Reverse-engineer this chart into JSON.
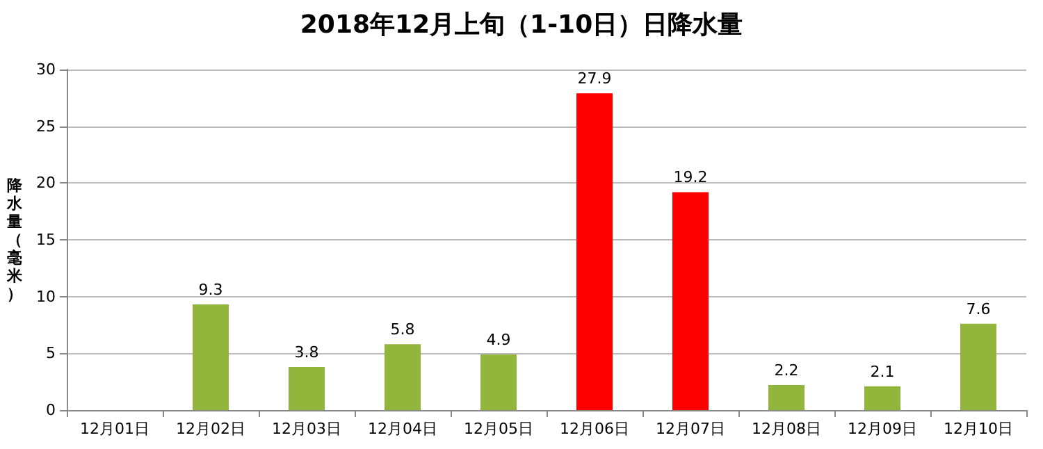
{
  "chart_data": {
    "type": "bar",
    "title": "2018年12月上旬（1-10日）日降水量",
    "ylabel": "降水量（毫米）",
    "categories": [
      "12月01日",
      "12月02日",
      "12月03日",
      "12月04日",
      "12月05日",
      "12月06日",
      "12月07日",
      "12月08日",
      "12月09日",
      "12月10日"
    ],
    "values": [
      0,
      9.3,
      3.8,
      5.8,
      4.9,
      27.9,
      19.2,
      2.2,
      2.1,
      7.6
    ],
    "value_labels": [
      null,
      "9.3",
      "3.8",
      "5.8",
      "4.9",
      "27.9",
      "19.2",
      "2.2",
      "2.1",
      "7.6"
    ],
    "colors": [
      "#92b53c",
      "#92b53c",
      "#92b53c",
      "#92b53c",
      "#92b53c",
      "#ff0000",
      "#ff0000",
      "#92b53c",
      "#92b53c",
      "#92b53c"
    ],
    "ylim": [
      0,
      30
    ],
    "yticks": [
      0,
      5,
      10,
      15,
      20,
      25,
      30
    ],
    "grid": "y"
  }
}
